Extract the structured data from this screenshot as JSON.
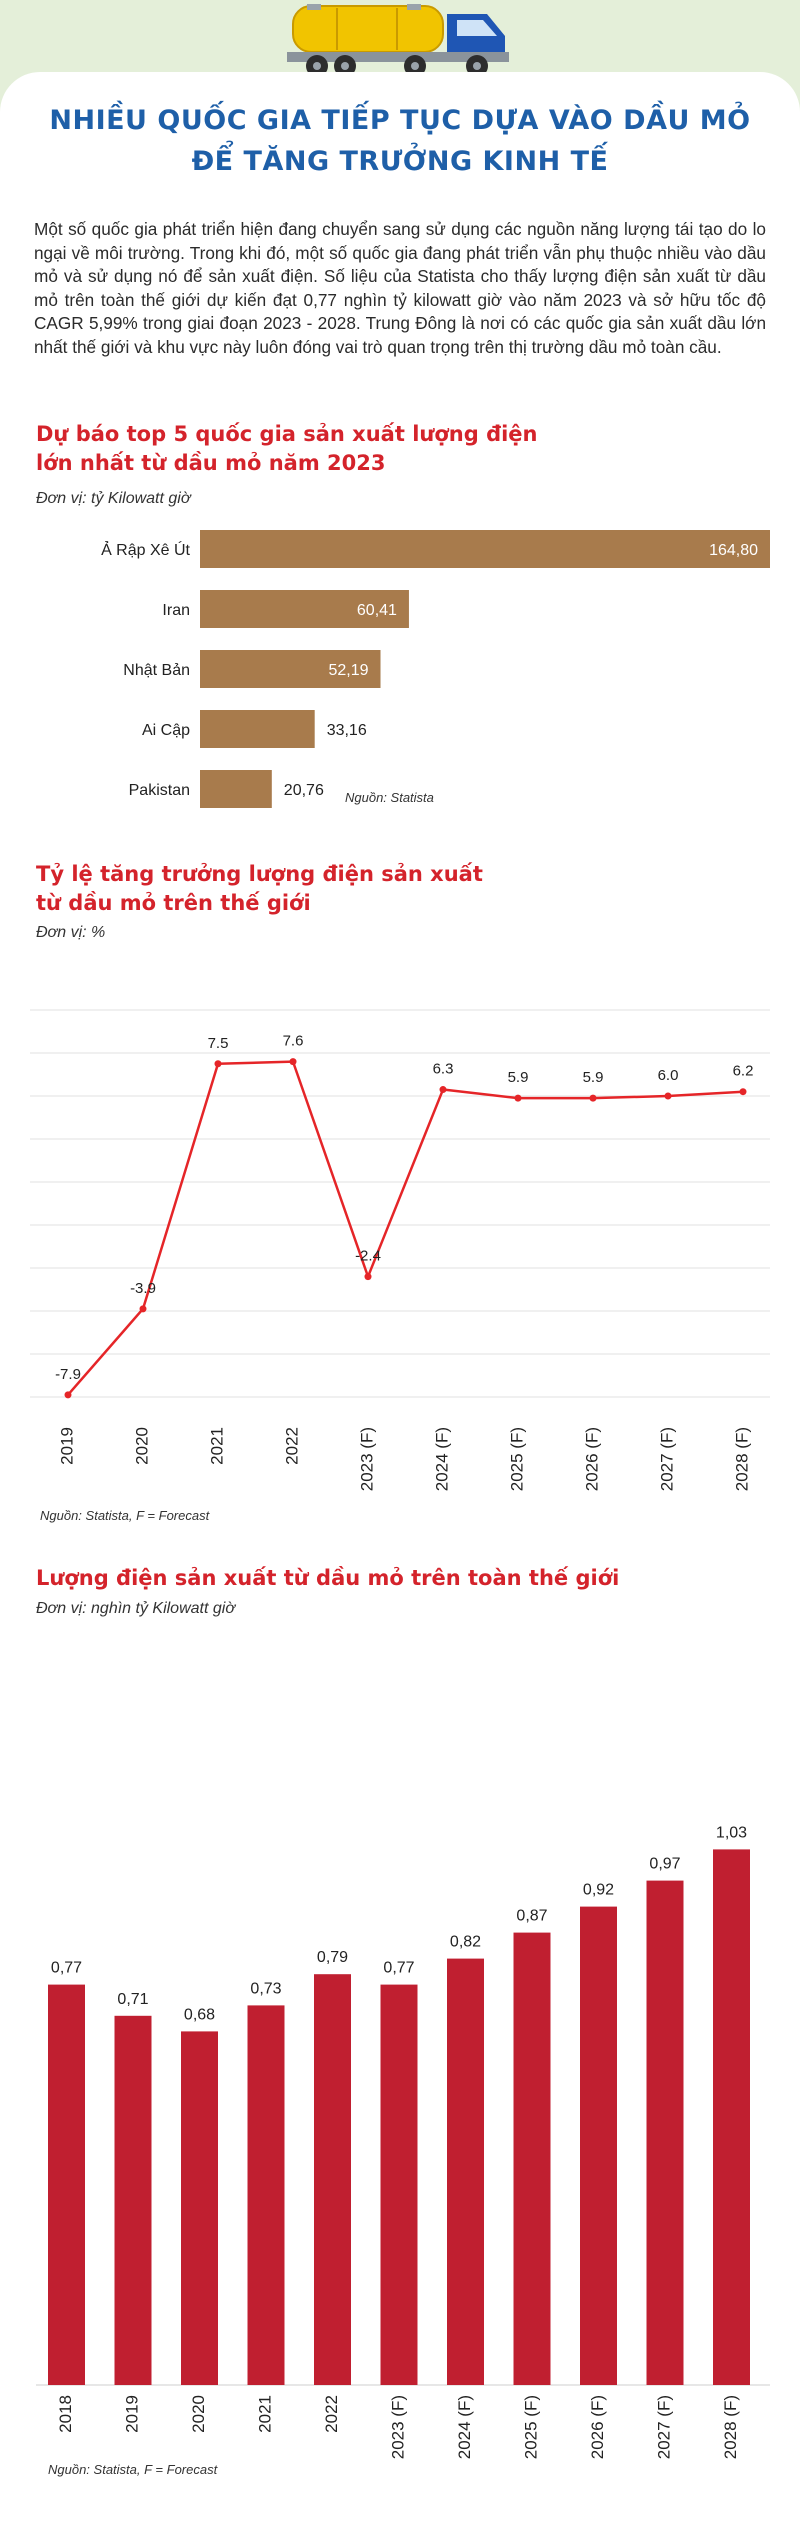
{
  "page": {
    "title_line1": "NHIỀU QUỐC GIA TIẾP TỤC DỰA VÀO DẦU MỎ",
    "title_line2": "ĐỂ TĂNG TRƯỞNG KINH TẾ",
    "intro": "Một số quốc gia phát triển hiện đang chuyển sang sử dụng các nguồn năng lượng tái tạo do lo ngại về môi trường. Trong khi đó, một số quốc gia đang phát triển vẫn phụ thuộc nhiều vào dầu mỏ và sử dụng nó để sản xuất điện. Số liệu của Statista cho thấy lượng điện sản xuất từ dầu mỏ trên toàn thế giới dự kiến đạt 0,77 nghìn tỷ kilowatt giờ vào năm 2023 và sở hữu tốc độ CAGR 5,99% trong giai đoạn 2023 - 2028. Trung Đông là nơi có các quốc gia sản xuất dầu lớn nhất thế giới và khu vực này luôn đóng vai trò quan trọng trên thị trường dầu mỏ toàn cầu.",
    "bg_color": "#e4efd9",
    "title_color": "#1e5fa8",
    "section_title_color": "#d4232b"
  },
  "chart_data": [
    {
      "type": "bar",
      "orientation": "horizontal",
      "title_line1": "Dự báo top 5 quốc gia sản xuất lượng điện",
      "title_line2": "lớn nhất từ dầu mỏ năm 2023",
      "unit": "Đơn vị: tỷ Kilowatt giờ",
      "source": "Nguồn: Statista",
      "color": "#a87b4c",
      "categories": [
        "Ả Rập Xê Út",
        "Iran",
        "Nhật Bản",
        "Ai Cập",
        "Pakistan"
      ],
      "values": [
        164.8,
        60.41,
        52.19,
        33.16,
        20.76
      ],
      "labels": [
        "164,80",
        "60,41",
        "52,19",
        "33,16",
        "20,76"
      ]
    },
    {
      "type": "line",
      "title_line1": "Tỷ lệ tăng trưởng lượng điện sản xuất",
      "title_line2": "từ dầu mỏ trên thế giới",
      "unit": "Đơn vị: %",
      "source": "Nguồn: Statista, F = Forecast",
      "color": "#e52528",
      "grid": true,
      "categories": [
        "2019",
        "2020",
        "2021",
        "2022",
        "2023 (F)",
        "2024 (F)",
        "2025 (F)",
        "2026 (F)",
        "2027 (F)",
        "2028 (F)"
      ],
      "values": [
        -7.9,
        -3.9,
        7.5,
        7.6,
        -2.4,
        6.3,
        5.9,
        5.9,
        6.0,
        6.2
      ],
      "labels": [
        "-7.9",
        "-3.9",
        "7.5",
        "7.6",
        "-2.4",
        "6.3",
        "5.9",
        "5.9",
        "6.0",
        "6.2"
      ],
      "ylim": [
        -8,
        10
      ]
    },
    {
      "type": "bar",
      "orientation": "vertical",
      "title": "Lượng điện sản xuất từ dầu mỏ trên toàn thế giới",
      "unit": "Đơn vị: nghìn tỷ Kilowatt giờ",
      "source": "Nguồn: Statista, F = Forecast",
      "color": "#c01f30",
      "categories": [
        "2018",
        "2019",
        "2020",
        "2021",
        "2022",
        "2023 (F)",
        "2024 (F)",
        "2025 (F)",
        "2026 (F)",
        "2027 (F)",
        "2028 (F)"
      ],
      "values": [
        0.77,
        0.71,
        0.68,
        0.73,
        0.79,
        0.77,
        0.82,
        0.87,
        0.92,
        0.97,
        1.03
      ],
      "labels": [
        "0,77",
        "0,71",
        "0,68",
        "0,73",
        "0,79",
        "0,77",
        "0,82",
        "0,87",
        "0,92",
        "0,97",
        "1,03"
      ]
    }
  ]
}
